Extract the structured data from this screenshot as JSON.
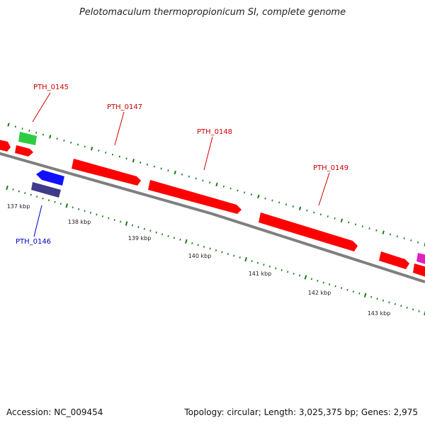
{
  "title": "Pelotomaculum thermopropionicum SI, complete genome",
  "footer": {
    "accession": "Accession: NC_009454",
    "summary": "Topology: circular; Length: 3,025,375 bp; Genes: 2,975"
  },
  "scale": {
    "ticks": [
      "137 kbp",
      "138 kbp",
      "139 kbp",
      "140 kbp",
      "141 kbp",
      "142 kbp",
      "143 kbp"
    ]
  },
  "genes": [
    {
      "label": "PTH_0145",
      "color": "#2ecc40",
      "strand": "+"
    },
    {
      "label": "PTH_0146",
      "color": "#1010ff",
      "strand": "-"
    },
    {
      "label": "PTH_0147",
      "color": "#ff0000",
      "strand": "+"
    },
    {
      "label": "PTH_0148",
      "color": "#ff0000",
      "strand": "+"
    },
    {
      "label": "PTH_0149",
      "color": "#ff0000",
      "strand": "+"
    }
  ],
  "colors": {
    "backbone": "#7f7f7f",
    "ticks": "#1a7a1a",
    "label_red": "#cc0000",
    "label_blue": "#0000cc",
    "gene_red": "#ff0000",
    "gene_green": "#2ecc40",
    "gene_blue": "#1010ff",
    "gene_purple": "#3f3a8a",
    "gene_magenta": "#e020c0"
  }
}
